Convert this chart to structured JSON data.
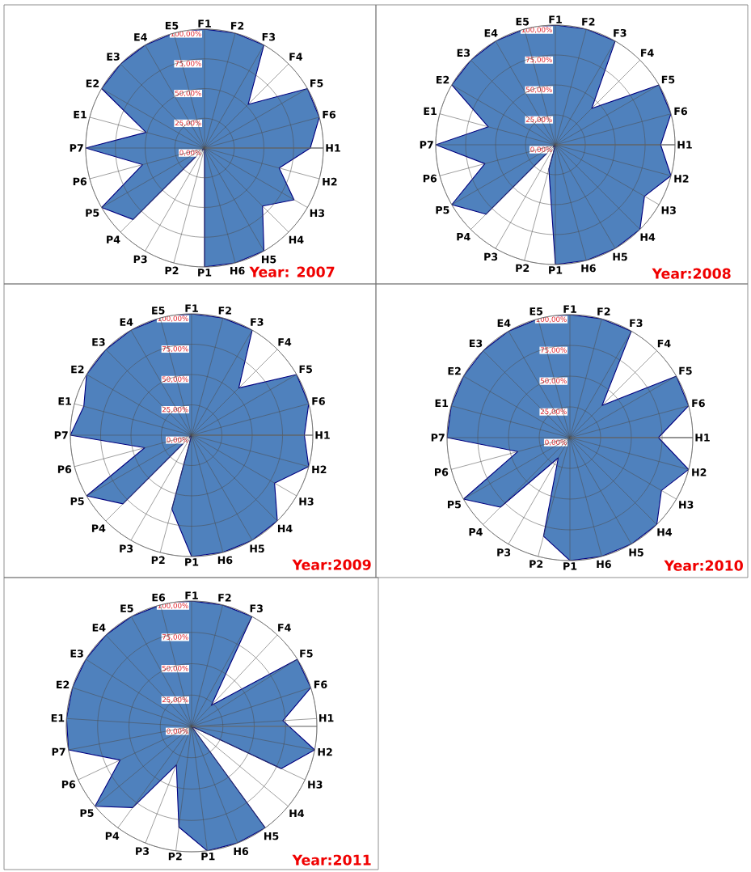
{
  "chart_data": [
    {
      "type": "radar",
      "categories": [
        "F1",
        "F2",
        "F3",
        "F4",
        "F5",
        "F6",
        "H1",
        "H2",
        "H3",
        "H4",
        "H5",
        "H6",
        "P1",
        "P2",
        "P3",
        "P4",
        "P5",
        "P6",
        "P7",
        "E1",
        "E2",
        "E3",
        "E4",
        "E5"
      ],
      "series": [
        {
          "color": "#4f81bd",
          "values": [
            100,
            100,
            100,
            52,
            100,
            100,
            89,
            65,
            87,
            69,
            100,
            100,
            100,
            0,
            0,
            85,
            100,
            54,
            100,
            51,
            100,
            100,
            100,
            100
          ]
        }
      ],
      "ylim": [
        0,
        100
      ],
      "yticks": [
        {
          "value": 0,
          "label": "0,00%"
        },
        {
          "value": 25,
          "label": "25,00%"
        },
        {
          "value": 50,
          "label": "50,00%"
        },
        {
          "value": 75,
          "label": "75,00%"
        },
        {
          "value": 100,
          "label": "100,00%"
        }
      ],
      "grid": true,
      "annotations": [
        "Year: 2007"
      ]
    },
    {
      "type": "radar",
      "categories": [
        "F1",
        "F2",
        "F3",
        "F4",
        "F5",
        "F6",
        "H1",
        "H2",
        "H3",
        "H4",
        "H5",
        "H6",
        "P1",
        "P2",
        "P3",
        "P4",
        "P5",
        "P6",
        "P7",
        "E1",
        "E2",
        "E3",
        "E4",
        "E5"
      ],
      "series": [
        {
          "color": "#4f81bd",
          "values": [
            100,
            100,
            100,
            43,
            100,
            100,
            88,
            100,
            86,
            100,
            100,
            100,
            100,
            21,
            0,
            82,
            100,
            61,
            100,
            58,
            100,
            100,
            100,
            100
          ]
        }
      ],
      "ylim": [
        0,
        100
      ],
      "yticks": [
        {
          "value": 0,
          "label": "0,00%"
        },
        {
          "value": 25,
          "label": "25,00%"
        },
        {
          "value": 50,
          "label": "50,00%"
        },
        {
          "value": 75,
          "label": "75,00%"
        },
        {
          "value": 100,
          "label": "100,00%"
        }
      ],
      "grid": true,
      "annotations": [
        "Year:2008"
      ]
    },
    {
      "type": "radar",
      "categories": [
        "F1",
        "F2",
        "F3",
        "F4",
        "F5",
        "F6",
        "H1",
        "H2",
        "H3",
        "H4",
        "H5",
        "H6",
        "P1",
        "P2",
        "P3",
        "P4",
        "P5",
        "P6",
        "P7",
        "E1",
        "E2",
        "E3",
        "E4",
        "E5"
      ],
      "series": [
        {
          "color": "#4f81bd",
          "values": [
            100,
            100,
            100,
            55,
            100,
            100,
            93,
            100,
            79,
            100,
            100,
            100,
            100,
            63,
            0,
            80,
            100,
            40,
            100,
            92,
            100,
            100,
            100,
            100
          ]
        }
      ],
      "ylim": [
        0,
        100
      ],
      "yticks": [
        {
          "value": 0,
          "label": "0,00%"
        },
        {
          "value": 25,
          "label": "25,00%"
        },
        {
          "value": 50,
          "label": "50,00%"
        },
        {
          "value": 75,
          "label": "75,00%"
        },
        {
          "value": 100,
          "label": "100,00%"
        }
      ],
      "grid": true,
      "annotations": [
        "Year:2009"
      ]
    },
    {
      "type": "radar",
      "categories": [
        "F1",
        "F2",
        "F3",
        "F4",
        "F5",
        "F6",
        "H1",
        "H2",
        "H3",
        "H4",
        "H5",
        "H6",
        "P1",
        "P2",
        "P3",
        "P4",
        "P5",
        "P6",
        "P7",
        "E1",
        "E2",
        "E3",
        "E4",
        "E5"
      ],
      "series": [
        {
          "color": "#4f81bd",
          "values": [
            100,
            100,
            100,
            37,
            100,
            100,
            72,
            100,
            86,
            100,
            100,
            100,
            100,
            83,
            19,
            80,
            100,
            44,
            100,
            100,
            100,
            100,
            100,
            100
          ]
        }
      ],
      "ylim": [
        0,
        100
      ],
      "yticks": [
        {
          "value": 0,
          "label": "0,00%"
        },
        {
          "value": 25,
          "label": "25,00%"
        },
        {
          "value": 50,
          "label": "50,00%"
        },
        {
          "value": 75,
          "label": "75,00%"
        },
        {
          "value": 100,
          "label": "100,00%"
        }
      ],
      "grid": true,
      "annotations": [
        "Year:2010"
      ]
    },
    {
      "type": "radar",
      "categories": [
        "F1",
        "F2",
        "F3",
        "F4",
        "F5",
        "F6",
        "H1",
        "H2",
        "H3",
        "H4",
        "H5",
        "H6",
        "P1",
        "P2",
        "P3",
        "P4",
        "P5",
        "P6",
        "P7",
        "E1",
        "E2",
        "E3",
        "E4",
        "E5",
        "E6"
      ],
      "series": [
        {
          "color": "#4f81bd",
          "values": [
            100,
            100,
            100,
            23,
            100,
            100,
            73,
            100,
            79,
            0,
            100,
            100,
            100,
            81,
            33,
            80,
            100,
            63,
            100,
            100,
            100,
            100,
            100,
            100,
            100
          ]
        }
      ],
      "ylim": [
        0,
        100
      ],
      "yticks": [
        {
          "value": 0,
          "label": "0,00%"
        },
        {
          "value": 25,
          "label": "25,00%"
        },
        {
          "value": 50,
          "label": "50,00%"
        },
        {
          "value": 75,
          "label": "75,00%"
        },
        {
          "value": 100,
          "label": "100,00%"
        }
      ],
      "grid": true,
      "annotations": [
        "Year:2011"
      ]
    }
  ]
}
